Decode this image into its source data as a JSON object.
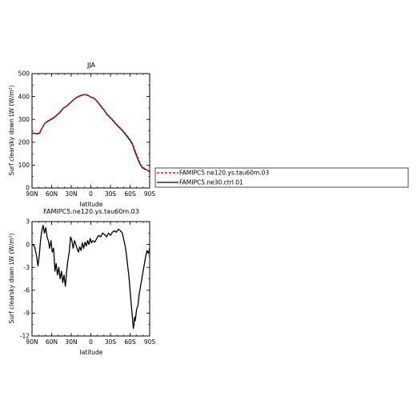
{
  "chart_data": [
    {
      "type": "line",
      "title": "JJA",
      "xlabel": "latitude",
      "ylabel": "Surf clearsky down LW (W/m²)",
      "xlim": [
        90,
        -90
      ],
      "ylim": [
        0,
        500
      ],
      "x_tick_labels": [
        "90N",
        "60N",
        "30N",
        "0",
        "30S",
        "60S",
        "90S"
      ],
      "y_tick_labels": [
        "0",
        "100",
        "200",
        "300",
        "400",
        "500"
      ],
      "legend": [
        "FAMIPC5.ne120.ys.tau60m.03",
        "FAMIPC5.ne30.ctrl.01"
      ],
      "legend_position": "right",
      "series": [
        {
          "name": "FAMIPC5.ne120.ys.tau60m.03",
          "color": "#d81818",
          "dashed": true,
          "x": [
            89,
            85,
            81,
            78,
            76,
            73,
            70,
            66,
            62,
            57,
            52,
            47,
            42,
            37,
            32,
            27,
            22,
            17,
            12,
            8,
            4,
            0,
            -5,
            -10,
            -15,
            -20,
            -25,
            -30,
            -35,
            -40,
            -45,
            -50,
            -55,
            -60,
            -64,
            -67,
            -70,
            -73,
            -76,
            -79,
            -82,
            -85,
            -88,
            -90
          ],
          "y": [
            240,
            240,
            238,
            243,
            256,
            270,
            284,
            293,
            300,
            308,
            320,
            333,
            350,
            358,
            372,
            385,
            396,
            403,
            408,
            409,
            405,
            398,
            393,
            378,
            360,
            343,
            323,
            308,
            293,
            277,
            263,
            248,
            231,
            212,
            193,
            170,
            148,
            124,
            104,
            92,
            86,
            82,
            74,
            70
          ]
        },
        {
          "name": "FAMIPC5.ne30.ctrl.01",
          "color": "#000000",
          "dashed": false,
          "x": [
            89,
            85,
            81,
            78,
            76,
            73,
            70,
            66,
            62,
            57,
            52,
            47,
            42,
            37,
            32,
            27,
            22,
            17,
            12,
            8,
            4,
            0,
            -5,
            -10,
            -15,
            -20,
            -25,
            -30,
            -35,
            -40,
            -45,
            -50,
            -55,
            -60,
            -64,
            -67,
            -70,
            -73,
            -76,
            -79,
            -82,
            -85,
            -88,
            -90
          ],
          "y": [
            238,
            238,
            236,
            241,
            255,
            270,
            284,
            291,
            298,
            306,
            318,
            331,
            349,
            357,
            371,
            384,
            395,
            402,
            407,
            408,
            404,
            397,
            392,
            377,
            358,
            341,
            321,
            306,
            291,
            274,
            260,
            245,
            227,
            208,
            188,
            162,
            140,
            118,
            100,
            88,
            83,
            80,
            74,
            70
          ]
        }
      ]
    },
    {
      "type": "line",
      "title": "FAMIPC5.ne120.ys.tau60m.03",
      "xlabel": "latitude",
      "ylabel": "Surf clearsky down LW (W/m²)",
      "xlim": [
        90,
        -90
      ],
      "ylim": [
        -12,
        3
      ],
      "x_tick_labels": [
        "90N",
        "60N",
        "30N",
        "0",
        "30S",
        "60S",
        "90S"
      ],
      "y_tick_labels": [
        "-12",
        "-9",
        "-6",
        "-3",
        "0",
        "3"
      ],
      "series": [
        {
          "color": "#000000",
          "dashed": false,
          "x": [
            89,
            86,
            83,
            81,
            79,
            77,
            75,
            73,
            71,
            69,
            67,
            65,
            63,
            61,
            59,
            57,
            55,
            53,
            51,
            49,
            47,
            45,
            43,
            41,
            39,
            37,
            35,
            33,
            31,
            29,
            27,
            25,
            23,
            21,
            19,
            17,
            15,
            13,
            11,
            9,
            7,
            5,
            3,
            1,
            -1,
            -3,
            -6,
            -9,
            -12,
            -15,
            -18,
            -21,
            -24,
            -27,
            -30,
            -33,
            -36,
            -39,
            -42,
            -45,
            -48,
            -50,
            -52,
            -54,
            -56,
            -58,
            -60,
            -62,
            -64,
            -65,
            -66,
            -67,
            -68,
            -70,
            -72,
            -74,
            -76,
            -78,
            -80,
            -82,
            -84,
            -86,
            -88,
            -90
          ],
          "y": [
            0,
            -0.3,
            -1.5,
            -2.8,
            -1.5,
            0.5,
            1.8,
            2.5,
            1.5,
            2.2,
            1.0,
            0.5,
            -0.5,
            0.5,
            -1.0,
            -0.5,
            -3.5,
            -2.5,
            -4.0,
            -3.0,
            -4.5,
            -3.5,
            -5.0,
            -4.0,
            -5.5,
            -3.5,
            -2.0,
            -1.0,
            1.0,
            0.5,
            -0.5,
            0.5,
            0.0,
            -0.5,
            -1.0,
            -0.3,
            -0.8,
            0.2,
            -0.5,
            0.3,
            -0.2,
            0.5,
            0.0,
            0.8,
            0.2,
            0.5,
            0.3,
            0.8,
            1.2,
            1.0,
            1.5,
            1.3,
            1.0,
            1.5,
            1.2,
            1.6,
            1.8,
            1.6,
            2.0,
            1.8,
            1.5,
            0.8,
            0.0,
            -1.0,
            -2.5,
            -4.0,
            -6.0,
            -8.0,
            -10.0,
            -11.0,
            -10.5,
            -9.5,
            -10.0,
            -8.5,
            -8.0,
            -6.5,
            -5.5,
            -4.5,
            -3.5,
            -2.5,
            -1.5,
            -0.8,
            -1.2,
            -0.5
          ]
        }
      ]
    }
  ]
}
